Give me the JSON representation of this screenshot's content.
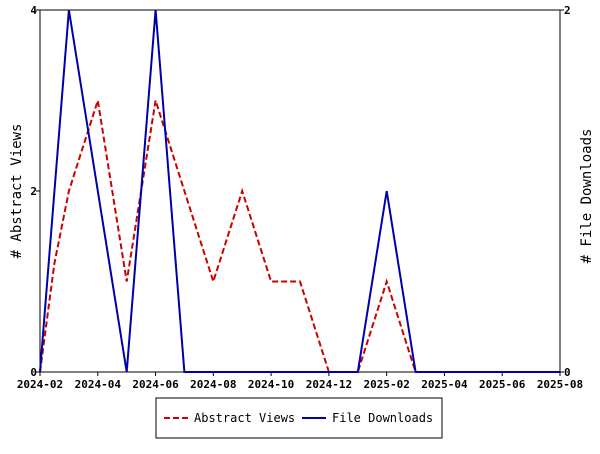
{
  "chart_data": {
    "type": "line",
    "x_ticks": [
      "2024-02",
      "2024-04",
      "2024-06",
      "2024-08",
      "2024-10",
      "2024-12",
      "2025-02",
      "2025-04",
      "2025-06",
      "2025-08"
    ],
    "x_range": [
      "2024-02",
      "2025-08"
    ],
    "y_left": {
      "label": "# Abstract Views",
      "range": [
        0,
        4
      ],
      "ticks": [
        "0",
        "2",
        "4"
      ]
    },
    "y_right": {
      "label": "# File Downloads",
      "range": [
        0,
        2
      ],
      "ticks": [
        "0",
        "2"
      ]
    },
    "grid": false,
    "legend_position": "bottom",
    "series": [
      {
        "name": "Abstract Views",
        "axis": "left",
        "color": "#cc0000",
        "dash": "dashed",
        "points": [
          {
            "x": "2024-02",
            "y": 0
          },
          {
            "x": "2024-02-16",
            "y": 1.2
          },
          {
            "x": "2024-03",
            "y": 2
          },
          {
            "x": "2024-04",
            "y": 3
          },
          {
            "x": "2024-05",
            "y": 1
          },
          {
            "x": "2024-06",
            "y": 3
          },
          {
            "x": "2024-07",
            "y": 2
          },
          {
            "x": "2024-08",
            "y": 1
          },
          {
            "x": "2024-09",
            "y": 2
          },
          {
            "x": "2024-10",
            "y": 1
          },
          {
            "x": "2024-11",
            "y": 1
          },
          {
            "x": "2024-12",
            "y": 0
          },
          {
            "x": "2025-01",
            "y": 0
          },
          {
            "x": "2025-02",
            "y": 1
          },
          {
            "x": "2025-03",
            "y": 0
          },
          {
            "x": "2025-08",
            "y": 0
          }
        ]
      },
      {
        "name": "File Downloads",
        "axis": "right",
        "color": "#0000aa",
        "dash": "solid",
        "points": [
          {
            "x": "2024-02",
            "y": 0
          },
          {
            "x": "2024-03",
            "y": 2
          },
          {
            "x": "2024-05",
            "y": 0
          },
          {
            "x": "2024-06",
            "y": 2
          },
          {
            "x": "2024-07",
            "y": 0
          },
          {
            "x": "2025-01",
            "y": 0
          },
          {
            "x": "2025-02",
            "y": 1
          },
          {
            "x": "2025-03",
            "y": 0
          },
          {
            "x": "2025-08",
            "y": 0
          }
        ]
      }
    ]
  }
}
